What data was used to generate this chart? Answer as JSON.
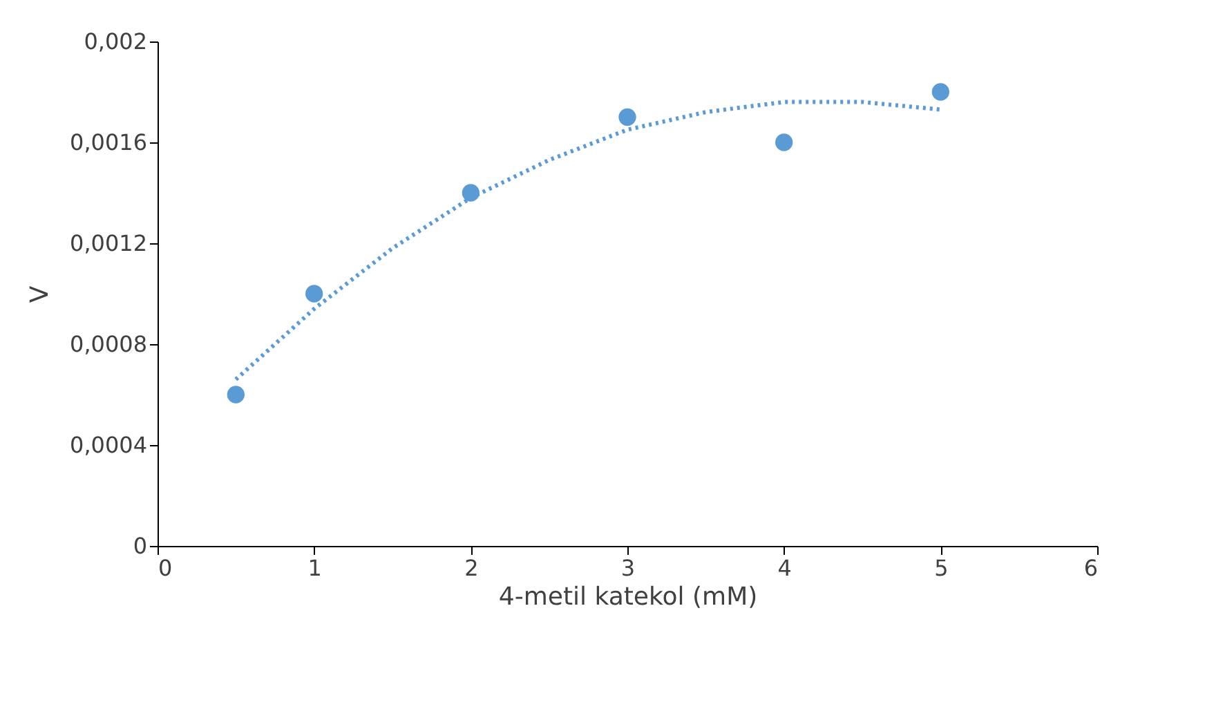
{
  "chart_data": {
    "type": "scatter",
    "xlabel": "4-metil katekol (mM)",
    "ylabel": "V",
    "series": [
      {
        "color": "#5b9bd5",
        "marker": "circle",
        "x": [
          0.5,
          1,
          2,
          3,
          4,
          5
        ],
        "values": [
          0.0006,
          0.001,
          0.0014,
          0.0017,
          0.0016,
          0.0018
        ]
      },
      {
        "type": "line",
        "color": "#5b9bd5",
        "marker": "none",
        "line_style": "dotted",
        "x": [
          0.5,
          1,
          1.5,
          2,
          2.5,
          3,
          3.5,
          4,
          4.5,
          5
        ],
        "values": [
          0.00066,
          0.00094,
          0.00118,
          0.00138,
          0.00153,
          0.00165,
          0.00172,
          0.00176,
          0.00176,
          0.00173
        ]
      }
    ],
    "xlim": [
      0,
      6
    ],
    "xticks": [
      0,
      1,
      2,
      3,
      4,
      5,
      6
    ],
    "ylim": [
      0,
      0.002
    ],
    "yticks": [
      0,
      {
        "value": 0.0004,
        "label": "0,0004"
      },
      {
        "value": 0.0008,
        "label": "0,0008"
      },
      {
        "value": 0.0012,
        "label": "0,0012"
      },
      {
        "value": 0.0016,
        "label": "0,0016"
      },
      {
        "value": 0.002,
        "label": "0,002"
      }
    ],
    "grid": false
  }
}
